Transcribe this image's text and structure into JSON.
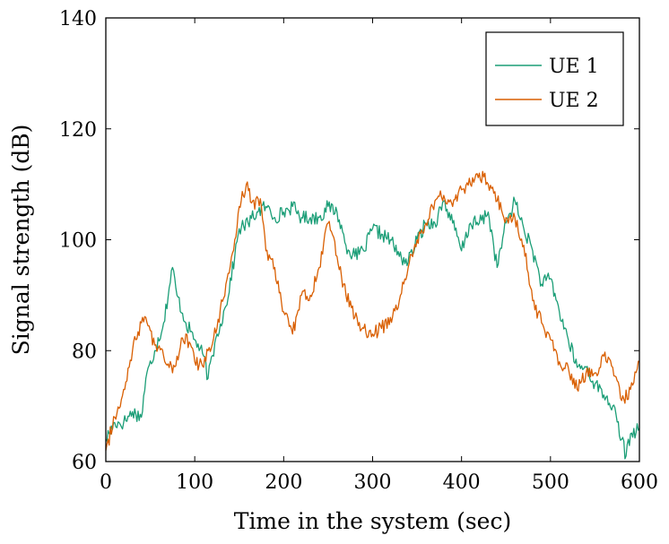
{
  "colors": {
    "ue1": "#1b9e77",
    "ue2": "#d95f02"
  },
  "chart_data": {
    "type": "line",
    "xlabel": "Time in the system (sec)",
    "ylabel": "Signal strength (dB)",
    "xlim": [
      0,
      600
    ],
    "ylim": [
      60,
      140
    ],
    "xticks": [
      0,
      100,
      200,
      300,
      400,
      500,
      600
    ],
    "yticks": [
      60,
      80,
      100,
      120,
      140
    ],
    "grid": false,
    "legend": "top-right",
    "series": [
      {
        "name": "UE 1",
        "color": "#1b9e77",
        "x": [
          0,
          10,
          20,
          30,
          40,
          45,
          55,
          65,
          75,
          80,
          90,
          100,
          110,
          115,
          125,
          135,
          145,
          150,
          160,
          170,
          180,
          190,
          200,
          210,
          220,
          230,
          240,
          250,
          260,
          270,
          280,
          290,
          300,
          310,
          320,
          330,
          340,
          350,
          360,
          370,
          380,
          390,
          400,
          410,
          420,
          430,
          440,
          450,
          460,
          470,
          480,
          490,
          500,
          510,
          520,
          530,
          540,
          550,
          560,
          570,
          580,
          585,
          590,
          600
        ],
        "y": [
          64,
          67,
          67,
          69,
          68,
          75,
          80,
          85,
          95,
          90,
          85,
          82,
          79,
          75,
          83,
          88,
          97,
          102,
          103,
          105,
          106,
          104,
          105,
          106,
          104,
          104,
          104,
          106,
          105,
          99,
          97,
          98,
          102,
          101,
          100,
          97,
          96,
          100,
          103,
          103,
          107,
          103,
          98,
          103,
          103,
          105,
          95,
          103,
          107,
          102,
          98,
          92,
          93,
          87,
          82,
          77,
          77,
          74,
          72,
          70,
          64,
          61,
          65,
          66
        ]
      },
      {
        "name": "UE 2",
        "color": "#d95f02",
        "x": [
          0,
          10,
          20,
          30,
          40,
          45,
          55,
          65,
          75,
          80,
          90,
          100,
          110,
          115,
          125,
          135,
          145,
          150,
          158,
          165,
          175,
          180,
          190,
          200,
          210,
          220,
          230,
          240,
          250,
          260,
          270,
          280,
          290,
          300,
          310,
          320,
          330,
          340,
          350,
          360,
          370,
          380,
          390,
          400,
          410,
          420,
          430,
          440,
          450,
          460,
          470,
          480,
          490,
          500,
          510,
          520,
          530,
          540,
          550,
          560,
          570,
          580,
          590,
          600
        ],
        "y": [
          62,
          68,
          73,
          80,
          85,
          86,
          81,
          79,
          76,
          79,
          83,
          78,
          77,
          80,
          84,
          92,
          100,
          106,
          110,
          107,
          106,
          98,
          95,
          87,
          83,
          90,
          90,
          95,
          103,
          97,
          90,
          86,
          84,
          83,
          84,
          86,
          89,
          95,
          100,
          103,
          107,
          108,
          106,
          109,
          110,
          112,
          110,
          107,
          104,
          104,
          99,
          89,
          85,
          82,
          78,
          77,
          73,
          76,
          76,
          79,
          77,
          71,
          73,
          78
        ]
      }
    ]
  }
}
